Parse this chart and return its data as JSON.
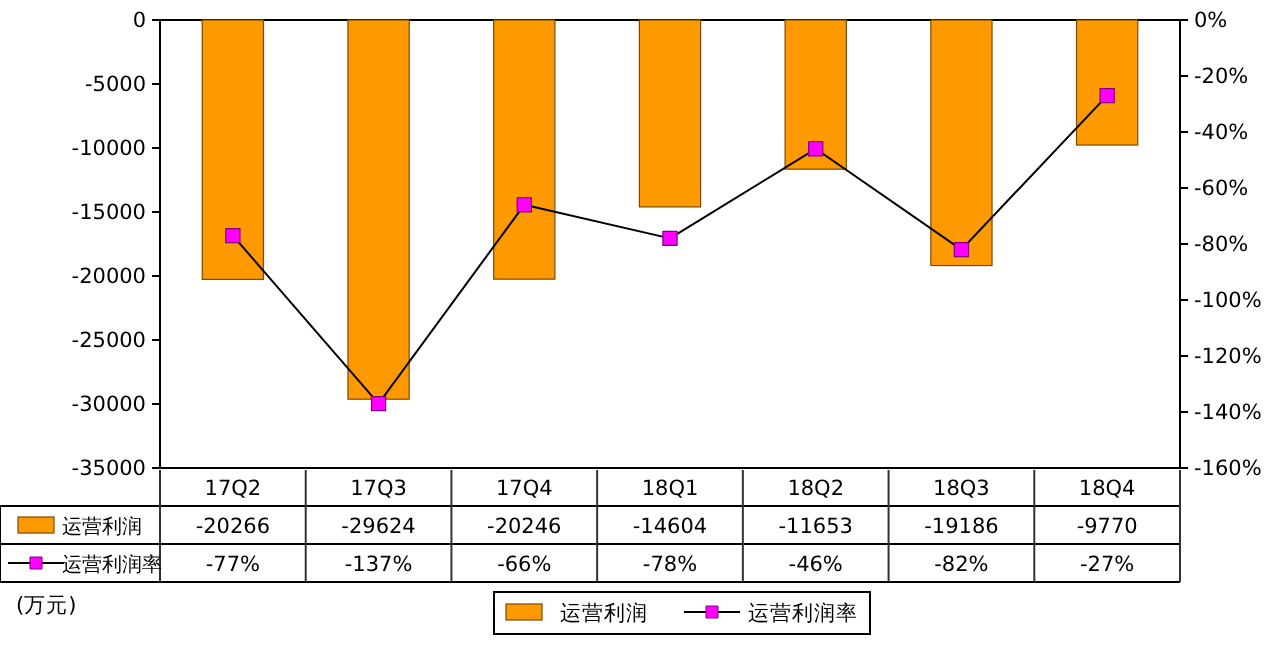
{
  "chart_data": {
    "type": "bar",
    "categories": [
      "17Q2",
      "17Q3",
      "17Q4",
      "18Q1",
      "18Q2",
      "18Q3",
      "18Q4"
    ],
    "series": [
      {
        "name": "运营利润",
        "color": "#ff9900",
        "values": [
          -20266,
          -29624,
          -20246,
          -14604,
          -11653,
          -19186,
          -9770
        ]
      },
      {
        "name": "运营利润率",
        "type": "line",
        "axis": "y2",
        "color": "#ff00ff",
        "marker": "square",
        "values": [
          -77,
          -137,
          -66,
          -78,
          -46,
          -82,
          -27
        ],
        "value_labels": [
          "-77%",
          "-137%",
          "-66%",
          "-78%",
          "-46%",
          "-82%",
          "-27%"
        ]
      }
    ],
    "ylim": [
      -35000,
      0
    ],
    "yticks": [
      -35000,
      -30000,
      -25000,
      -20000,
      -15000,
      -10000,
      -5000,
      0
    ],
    "y2lim": [
      -160,
      0
    ],
    "y2ticks": [
      {
        "value": -160,
        "label": "-160%"
      },
      {
        "value": -140,
        "label": "-140%"
      },
      {
        "value": -120,
        "label": "-120%"
      },
      {
        "value": -100,
        "label": "-100%"
      },
      {
        "value": -80,
        "label": "-80%"
      },
      {
        "value": -60,
        "label": "-60%"
      },
      {
        "value": -40,
        "label": "-40%"
      },
      {
        "value": -20,
        "label": "-20%"
      },
      {
        "value": 0,
        "label": "0%"
      }
    ],
    "data_labels": true,
    "legend": "bottom",
    "annotations": [
      "(万元)"
    ]
  }
}
